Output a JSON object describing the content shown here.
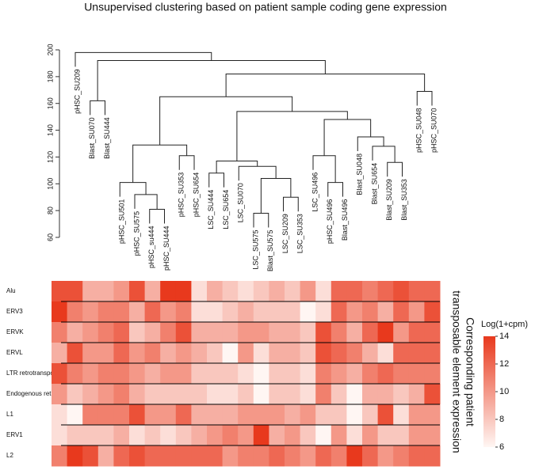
{
  "chart_data": {
    "type": "heatmap",
    "title": "Unsupervised clustering based on patient sample coding gene expression",
    "dendrogram": {
      "ylim": [
        60,
        200
      ],
      "yticks": [
        60,
        80,
        100,
        120,
        140,
        160,
        180,
        200
      ],
      "tree": {
        "height": 198,
        "children": [
          {
            "label": "pHSC_SU209"
          },
          {
            "height": 192,
            "children": [
              {
                "height": 162,
                "children": [
                  {
                    "label": "Blast_SU070"
                  },
                  {
                    "label": "Blast_SU444"
                  }
                ]
              },
              {
                "height": 182,
                "children": [
                  {
                    "height": 165,
                    "children": [
                      {
                        "height": 129,
                        "children": [
                          {
                            "height": 101,
                            "children": [
                              {
                                "label": "pHSC_SU501"
                              },
                              {
                                "height": 92,
                                "children": [
                                  {
                                    "label": "pHSC_SU575"
                                  },
                                  {
                                    "height": 81,
                                    "children": [
                                      {
                                        "label": "pHSC_su444"
                                      },
                                      {
                                        "label": "pHSC_SU444"
                                      }
                                    ]
                                  }
                                ]
                              }
                            ]
                          },
                          {
                            "height": 121,
                            "children": [
                              {
                                "label": "pHSC_SU353"
                              },
                              {
                                "label": "pHSC_SU654"
                              }
                            ]
                          }
                        ]
                      },
                      {
                        "height": 154,
                        "children": [
                          {
                            "height": 117,
                            "children": [
                              {
                                "height": 108,
                                "children": [
                                  {
                                    "label": "LSC_SU444"
                                  },
                                  {
                                    "label": "LSC_SU654"
                                  }
                                ]
                              },
                              {
                                "height": 113,
                                "children": [
                                  {
                                    "label": "LSC_SU070"
                                  },
                                  {
                                    "height": 104,
                                    "children": [
                                      {
                                        "height": 78,
                                        "children": [
                                          {
                                            "label": "LSC_SU575"
                                          },
                                          {
                                            "label": "Blast_SU575"
                                          }
                                        ]
                                      },
                                      {
                                        "height": 90,
                                        "children": [
                                          {
                                            "label": "LSC_SU209"
                                          },
                                          {
                                            "label": "LSC_SU353"
                                          }
                                        ]
                                      }
                                    ]
                                  }
                                ]
                              }
                            ]
                          },
                          {
                            "height": 148,
                            "children": [
                              {
                                "height": 121,
                                "children": [
                                  {
                                    "label": "LSC_SU496"
                                  },
                                  {
                                    "height": 101,
                                    "children": [
                                      {
                                        "label": "pHSC_SU496"
                                      },
                                      {
                                        "label": "Blast_SU496"
                                      }
                                    ]
                                  }
                                ]
                              },
                              {
                                "height": 135,
                                "children": [
                                  {
                                    "label": "Blast_SU048"
                                  },
                                  {
                                    "height": 128,
                                    "children": [
                                      {
                                        "label": "Blast_SU654"
                                      },
                                      {
                                        "height": 116,
                                        "children": [
                                          {
                                            "label": "Blast_SU209"
                                          },
                                          {
                                            "label": "Blast_SU353"
                                          }
                                        ]
                                      }
                                    ]
                                  }
                                ]
                              }
                            ]
                          }
                        ]
                      }
                    ]
                  },
                  {
                    "height": 169,
                    "children": [
                      {
                        "label": "pHSC_SU048"
                      },
                      {
                        "label": "pHSC_SU070"
                      }
                    ]
                  }
                ]
              }
            ]
          }
        ]
      }
    },
    "rows": [
      "Alu",
      "ERV3",
      "ERVK",
      "ERVL",
      "LTR retrotransposon",
      "Endogenous retrovirus",
      "L1",
      "ERV1",
      "L2"
    ],
    "values": [
      [
        13,
        13,
        9,
        9,
        10,
        13,
        9,
        14,
        14,
        7,
        9,
        8,
        7,
        8,
        9,
        8,
        10,
        7,
        12,
        12,
        11,
        12,
        13,
        12,
        12
      ],
      [
        14,
        11,
        10,
        11,
        11,
        9,
        12,
        10,
        11,
        7,
        7,
        8,
        9,
        8,
        8,
        8,
        6,
        7,
        12,
        10,
        11,
        9,
        12,
        10,
        13
      ],
      [
        11,
        9,
        10,
        11,
        12,
        8,
        9,
        11,
        13,
        9,
        9,
        9,
        10,
        10,
        9,
        9,
        8,
        13,
        11,
        9,
        12,
        14,
        10,
        12,
        12
      ],
      [
        9,
        13,
        10,
        10,
        12,
        10,
        11,
        9,
        10,
        9,
        8,
        6,
        10,
        7,
        9,
        9,
        8,
        13,
        12,
        11,
        9,
        7,
        12,
        12,
        12
      ],
      [
        13,
        11,
        10,
        11,
        11,
        10,
        9,
        10,
        10,
        8,
        8,
        8,
        7,
        6,
        8,
        8,
        7,
        11,
        10,
        9,
        11,
        12,
        11,
        11,
        11
      ],
      [
        10,
        8,
        9,
        10,
        11,
        9,
        8,
        8,
        8,
        8,
        7,
        7,
        8,
        6,
        8,
        8,
        7,
        11,
        8,
        6,
        9,
        9,
        8,
        9,
        13
      ],
      [
        7,
        6,
        11,
        11,
        11,
        13,
        10,
        10,
        12,
        9,
        9,
        9,
        10,
        10,
        10,
        9,
        10,
        8,
        8,
        6,
        8,
        13,
        7,
        10,
        10
      ],
      [
        7,
        8,
        8,
        8,
        9,
        7,
        8,
        7,
        8,
        9,
        10,
        11,
        10,
        14,
        9,
        10,
        8,
        6,
        10,
        7,
        10,
        8,
        8,
        10,
        10
      ],
      [
        11,
        14,
        13,
        9,
        12,
        13,
        12,
        12,
        12,
        12,
        12,
        10,
        11,
        11,
        12,
        11,
        10,
        12,
        11,
        14,
        12,
        10,
        11,
        12,
        12
      ]
    ],
    "clim": [
      6,
      14
    ],
    "cticks": [
      6,
      8,
      10,
      12,
      14
    ],
    "colormap": [
      "#fff6f3",
      "#e8391d"
    ],
    "legend_title": "Log(1+cpm)",
    "side_label": [
      "Corresponding patient",
      "transposable element expression"
    ]
  }
}
